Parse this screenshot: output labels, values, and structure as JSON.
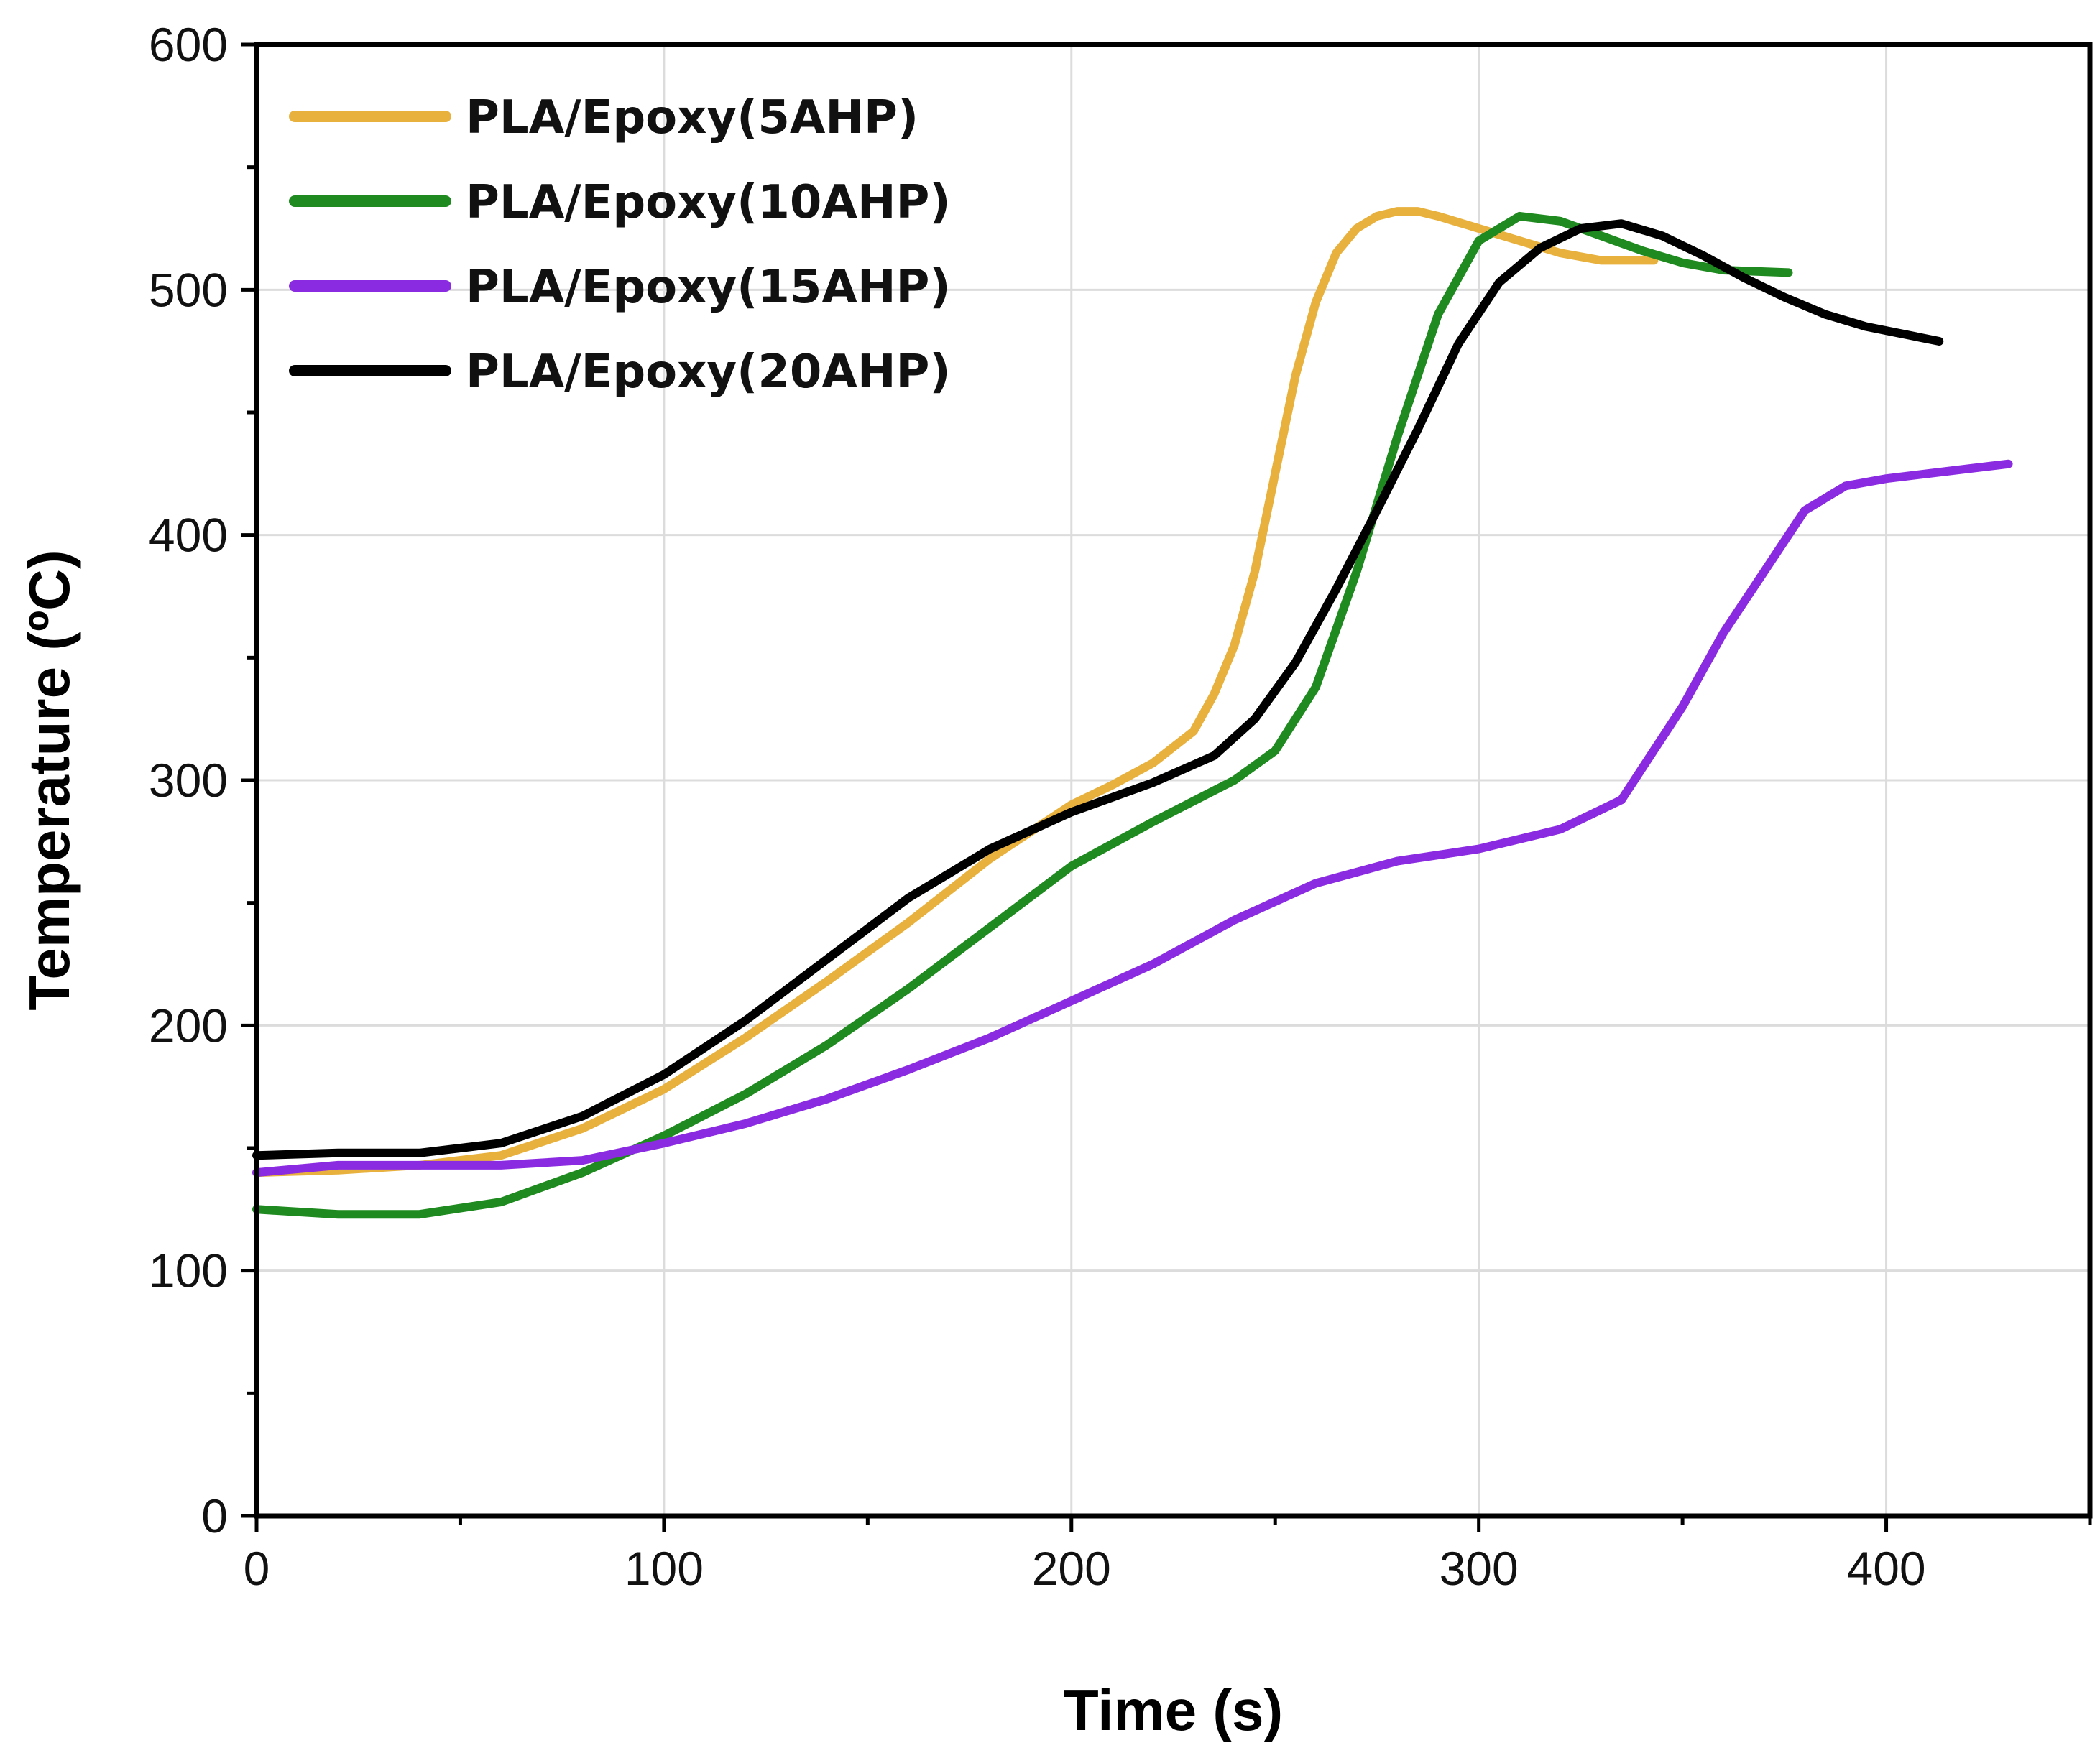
{
  "chart_data": {
    "type": "line",
    "xlabel": "Time (s)",
    "ylabel": "Temperature (ºC)",
    "xlim": [
      0,
      450
    ],
    "ylim": [
      0,
      600
    ],
    "xticks": [
      0,
      100,
      200,
      300,
      400
    ],
    "xtick_labels": [
      "0",
      "100",
      "200",
      "300",
      "400"
    ],
    "yticks": [
      0,
      100,
      200,
      300,
      400,
      500,
      600
    ],
    "ytick_labels": [
      "0",
      "100",
      "200",
      "300",
      "400",
      "500",
      "600"
    ],
    "grid": true,
    "legend_position": "top-left",
    "series": [
      {
        "name": "PLA/Epoxy(5AHP)",
        "color": "#e8b13e",
        "x": [
          0,
          20,
          40,
          60,
          80,
          100,
          120,
          140,
          160,
          180,
          200,
          210,
          220,
          230,
          235,
          240,
          245,
          250,
          255,
          260,
          265,
          270,
          275,
          280,
          285,
          290,
          300,
          310,
          320,
          330,
          343
        ],
        "y": [
          140,
          141,
          143,
          147,
          158,
          174,
          195,
          218,
          242,
          268,
          290,
          298,
          307,
          320,
          335,
          355,
          385,
          425,
          465,
          495,
          515,
          525,
          530,
          532,
          532,
          530,
          525,
          520,
          515,
          512,
          512
        ]
      },
      {
        "name": "PLA/Epoxy(10AHP)",
        "color": "#1f8a1f",
        "x": [
          0,
          20,
          40,
          60,
          80,
          100,
          120,
          140,
          160,
          180,
          200,
          220,
          240,
          250,
          260,
          270,
          280,
          290,
          300,
          310,
          320,
          330,
          340,
          350,
          360,
          376
        ],
        "y": [
          125,
          123,
          123,
          128,
          140,
          155,
          172,
          192,
          215,
          240,
          265,
          283,
          300,
          312,
          338,
          385,
          440,
          490,
          520,
          530,
          528,
          522,
          516,
          511,
          508,
          507
        ]
      },
      {
        "name": "PLA/Epoxy(15AHP)",
        "color": "#8a2be2",
        "x": [
          0,
          20,
          40,
          60,
          80,
          100,
          120,
          140,
          160,
          180,
          200,
          220,
          240,
          260,
          280,
          300,
          320,
          335,
          350,
          360,
          370,
          380,
          390,
          400,
          420,
          430
        ],
        "y": [
          140,
          143,
          143,
          143,
          145,
          152,
          160,
          170,
          182,
          195,
          210,
          225,
          243,
          258,
          267,
          272,
          280,
          292,
          330,
          360,
          385,
          410,
          420,
          423,
          427,
          429
        ]
      },
      {
        "name": "PLA/Epoxy(20AHP)",
        "color": "#000000",
        "x": [
          0,
          20,
          40,
          60,
          80,
          100,
          120,
          140,
          160,
          180,
          200,
          220,
          235,
          245,
          255,
          265,
          275,
          285,
          295,
          305,
          315,
          325,
          335,
          345,
          355,
          365,
          375,
          385,
          395,
          413
        ],
        "y": [
          147,
          148,
          148,
          152,
          163,
          180,
          202,
          227,
          252,
          272,
          287,
          299,
          310,
          325,
          348,
          378,
          410,
          443,
          478,
          503,
          517,
          525,
          527,
          522,
          514,
          505,
          497,
          490,
          485,
          479
        ]
      }
    ]
  }
}
